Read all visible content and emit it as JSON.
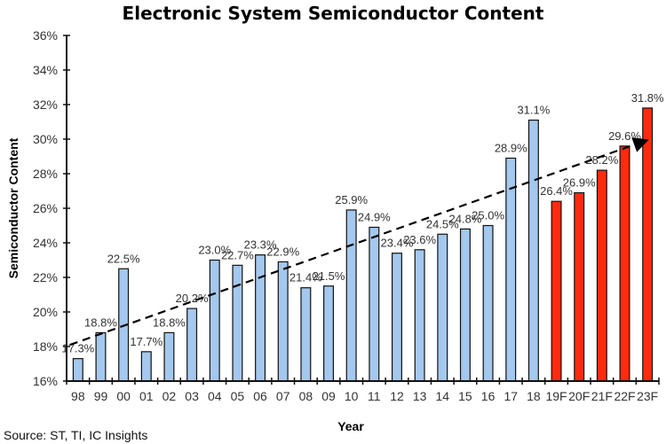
{
  "chart_data": {
    "type": "bar",
    "title": "Electronic System Semiconductor Content",
    "xlabel": "Year",
    "ylabel": "Semiconductor Content",
    "source": "Source: ST, TI, IC Insights",
    "ylim": [
      16,
      36
    ],
    "yticks": [
      16,
      18,
      20,
      22,
      24,
      26,
      28,
      30,
      32,
      34,
      36
    ],
    "ytick_suffix": "%",
    "grid": false,
    "legend": "none",
    "colors": {
      "actual": "#a4c8ee",
      "forecast": "#ff2a0e",
      "outline": "#111111",
      "trend": "#000000"
    },
    "categories": [
      "98",
      "99",
      "00",
      "01",
      "02",
      "03",
      "04",
      "05",
      "06",
      "07",
      "08",
      "09",
      "10",
      "11",
      "12",
      "13",
      "14",
      "15",
      "16",
      "17",
      "18",
      "19F",
      "20F",
      "21F",
      "22F",
      "23F"
    ],
    "values": [
      17.3,
      18.8,
      22.5,
      17.7,
      18.8,
      20.2,
      23.0,
      22.7,
      23.3,
      22.9,
      21.4,
      21.5,
      25.9,
      24.9,
      23.4,
      23.6,
      24.5,
      24.8,
      25.0,
      28.9,
      31.1,
      26.4,
      26.9,
      28.2,
      29.6,
      31.8
    ],
    "data_labels": [
      "17.3%",
      "18.8%",
      "22.5%",
      "17.7%",
      "18.8%",
      "20.2%",
      "23.0%",
      "22.7%",
      "23.3%",
      "22.9%",
      "21.4%",
      "21.5%",
      "25.9%",
      "24.9%",
      "23.4%",
      "23.6%",
      "24.5%",
      "24.8%",
      "25.0%",
      "28.9%",
      "31.1%",
      "26.4%",
      "26.9%",
      "28.2%",
      "29.6%",
      "31.8%"
    ],
    "forecast": [
      false,
      false,
      false,
      false,
      false,
      false,
      false,
      false,
      false,
      false,
      false,
      false,
      false,
      false,
      false,
      false,
      false,
      false,
      false,
      false,
      false,
      true,
      true,
      true,
      true,
      true
    ],
    "trendline": {
      "style": "dashed-arrow",
      "start": {
        "category": "98",
        "value": 18.1
      },
      "end": {
        "category": "23F",
        "value": 29.9
      }
    }
  }
}
